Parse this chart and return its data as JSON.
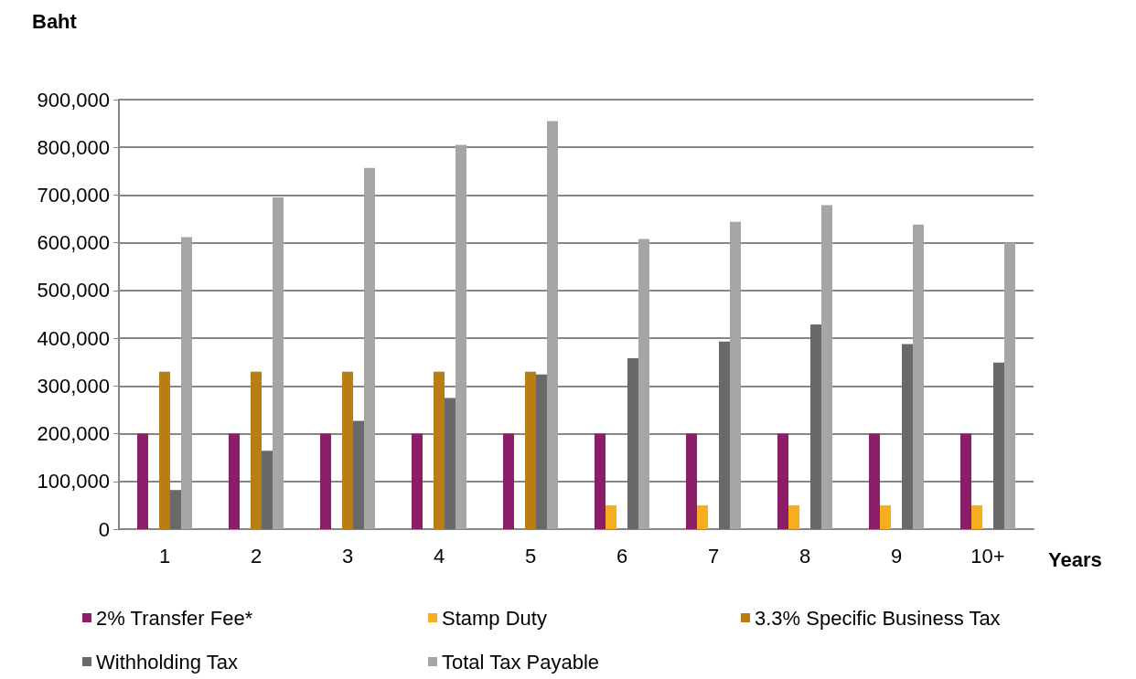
{
  "chart_data": {
    "type": "bar",
    "xlabel": "Years",
    "ylabel": "Baht",
    "categories": [
      "1",
      "2",
      "3",
      "4",
      "5",
      "6",
      "7",
      "8",
      "9",
      "10+"
    ],
    "series": [
      {
        "name": "2% Transfer Fee*",
        "color": "#8b1e66",
        "values": [
          200000,
          200000,
          200000,
          200000,
          200000,
          200000,
          200000,
          200000,
          200000,
          200000
        ]
      },
      {
        "name": "Stamp Duty",
        "color": "#f7ae1e",
        "values": [
          null,
          null,
          null,
          null,
          null,
          50000,
          50000,
          50000,
          50000,
          50000
        ]
      },
      {
        "name": "3.3% Specific Business Tax",
        "color": "#b97d15",
        "values": [
          330000,
          330000,
          330000,
          330000,
          330000,
          null,
          null,
          null,
          null,
          null
        ]
      },
      {
        "name": "Withholding Tax",
        "color": "#696969",
        "values": [
          82000,
          164000,
          227000,
          275000,
          324000,
          358000,
          393000,
          429000,
          388000,
          349000
        ]
      },
      {
        "name": "Total Tax Payable",
        "color": "#a6a6a6",
        "values": [
          612000,
          695000,
          757000,
          805000,
          855000,
          608000,
          644000,
          679000,
          638000,
          600000
        ]
      }
    ],
    "ylim": [
      0,
      900000
    ],
    "yticks": [
      0,
      {
        "value": 100000,
        "label": "100,000"
      },
      {
        "value": 200000,
        "label": "200,000"
      },
      {
        "value": 300000,
        "label": "300,000"
      },
      {
        "value": 400000,
        "label": "400,000"
      },
      {
        "value": 500000,
        "label": "500,000"
      },
      {
        "value": 600000,
        "label": "600,000"
      },
      {
        "value": 700000,
        "label": "700,000"
      },
      {
        "value": 800000,
        "label": "800,000"
      },
      {
        "value": 900000,
        "label": "900,000"
      }
    ],
    "grid": "y",
    "legend": "bottom"
  }
}
